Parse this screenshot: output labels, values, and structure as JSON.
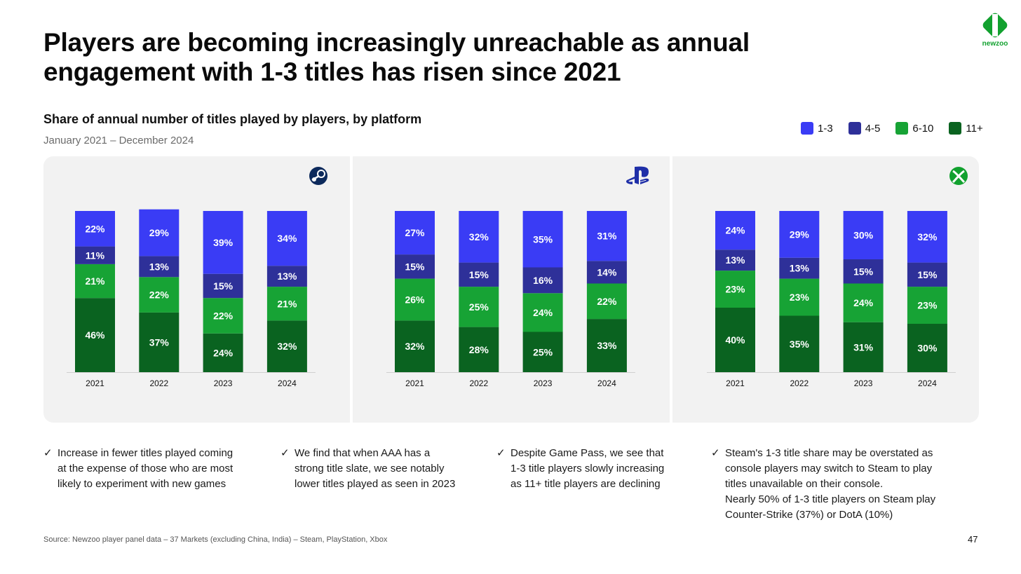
{
  "title": {
    "line1": "Players are becoming increasingly unreachable as annual",
    "line2": "engagement with 1-3 titles has risen since 2021"
  },
  "brand": {
    "name": "newzoo",
    "color": "#12a12f",
    "icon": "newzoo-logo-icon"
  },
  "subtitle": "Share of annual number of titles played by players, by platform",
  "date_range": "January 2021 – December 2024",
  "legend": [
    {
      "label": "1-3",
      "color": "#3a3cf5"
    },
    {
      "label": "4-5",
      "color": "#2e3099"
    },
    {
      "label": "6-10",
      "color": "#17a335"
    },
    {
      "label": "11+",
      "color": "#0a6320"
    }
  ],
  "chart_data": [
    {
      "type": "bar",
      "stacked": true,
      "platform_icon": "steam-icon",
      "categories": [
        "2021",
        "2022",
        "2023",
        "2024"
      ],
      "series": [
        {
          "name": "11+",
          "color": "#0a6320",
          "values": [
            46,
            37,
            24,
            32
          ]
        },
        {
          "name": "6-10",
          "color": "#17a335",
          "values": [
            21,
            22,
            22,
            21
          ]
        },
        {
          "name": "4-5",
          "color": "#2e3099",
          "values": [
            11,
            13,
            15,
            13
          ]
        },
        {
          "name": "1-3",
          "color": "#3a3cf5",
          "values": [
            22,
            29,
            39,
            34
          ]
        }
      ],
      "ylim": [
        0,
        100
      ],
      "unit": "%"
    },
    {
      "type": "bar",
      "stacked": true,
      "platform_icon": "playstation-icon",
      "categories": [
        "2021",
        "2022",
        "2023",
        "2024"
      ],
      "series": [
        {
          "name": "11+",
          "color": "#0a6320",
          "values": [
            32,
            28,
            25,
            33
          ]
        },
        {
          "name": "6-10",
          "color": "#17a335",
          "values": [
            26,
            25,
            24,
            22
          ]
        },
        {
          "name": "4-5",
          "color": "#2e3099",
          "values": [
            15,
            15,
            16,
            14
          ]
        },
        {
          "name": "1-3",
          "color": "#3a3cf5",
          "values": [
            27,
            32,
            35,
            31
          ]
        }
      ],
      "ylim": [
        0,
        100
      ],
      "unit": "%"
    },
    {
      "type": "bar",
      "stacked": true,
      "platform_icon": "xbox-icon",
      "categories": [
        "2021",
        "2022",
        "2023",
        "2024"
      ],
      "series": [
        {
          "name": "11+",
          "color": "#0a6320",
          "values": [
            40,
            35,
            31,
            30
          ]
        },
        {
          "name": "6-10",
          "color": "#17a335",
          "values": [
            23,
            23,
            24,
            23
          ]
        },
        {
          "name": "4-5",
          "color": "#2e3099",
          "values": [
            13,
            13,
            15,
            15
          ]
        },
        {
          "name": "1-3",
          "color": "#3a3cf5",
          "values": [
            24,
            29,
            30,
            32
          ]
        }
      ],
      "ylim": [
        0,
        100
      ],
      "unit": "%"
    }
  ],
  "notes": [
    {
      "icon": "checkmark-icon",
      "check": "✓",
      "lines": [
        "Increase in fewer titles played coming",
        "at the expense of those who are most",
        "likely to experiment with new games"
      ]
    },
    {
      "icon": "checkmark-icon",
      "check": "✓",
      "lines": [
        "We find that when AAA has a",
        "strong title slate, we see notably",
        "lower titles played as seen in 2023"
      ]
    },
    {
      "icon": "checkmark-icon",
      "check": "✓",
      "lines": [
        "Despite Game Pass, we see that",
        "1-3 title players slowly increasing",
        "as 11+ title players are declining"
      ]
    },
    {
      "icon": "checkmark-icon",
      "check": "✓",
      "lines": [
        "Steam's 1-3 title share may be overstated as",
        "console players may switch to Steam to play",
        "titles unavailable on their console.",
        "Nearly 50% of 1-3 title players on Steam play",
        "Counter-Strike (37%) or DotA (10%)"
      ]
    }
  ],
  "source": "Source: Newzoo player panel data – 37 Markets (excluding China, India) – Steam, PlayStation, Xbox",
  "page_number": "47"
}
